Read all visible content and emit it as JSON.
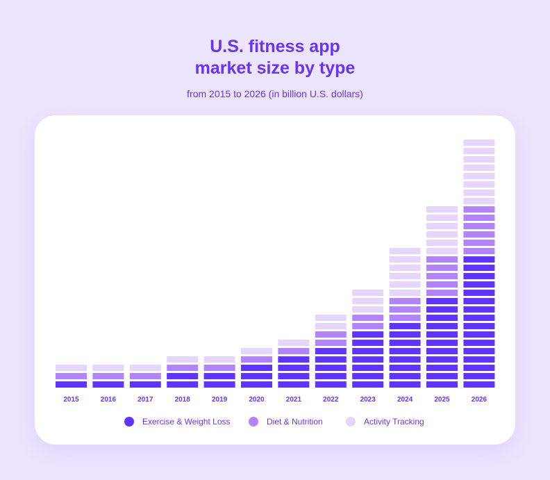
{
  "chart_data": {
    "type": "bar",
    "stacked": true,
    "title_line1": "U.S. fitness app",
    "title_line2": "market size by type",
    "subtitle": "from 2015 to 2026 (in billion U.S. dollars)",
    "categories": [
      "2015",
      "2016",
      "2017",
      "2018",
      "2019",
      "2020",
      "2021",
      "2022",
      "2023",
      "2024",
      "2025",
      "2026"
    ],
    "series": [
      {
        "name": "Exercise & Weight Loss",
        "color": "#6133ff",
        "values": [
          1,
          1,
          1,
          2,
          2,
          3,
          4,
          5,
          7,
          8,
          11,
          16
        ]
      },
      {
        "name": "Diet & Nutrition",
        "color": "#b383fc",
        "values": [
          1,
          1,
          1,
          1,
          1,
          1,
          1,
          2,
          2,
          3,
          5,
          6
        ]
      },
      {
        "name": "Activity Tracking",
        "color": "#e6d5fd",
        "values": [
          1,
          1,
          1,
          1,
          1,
          1,
          1,
          2,
          3,
          6,
          6,
          8
        ]
      }
    ],
    "ylabel": "",
    "xlabel": "",
    "grid": false,
    "legend": "bottom"
  }
}
